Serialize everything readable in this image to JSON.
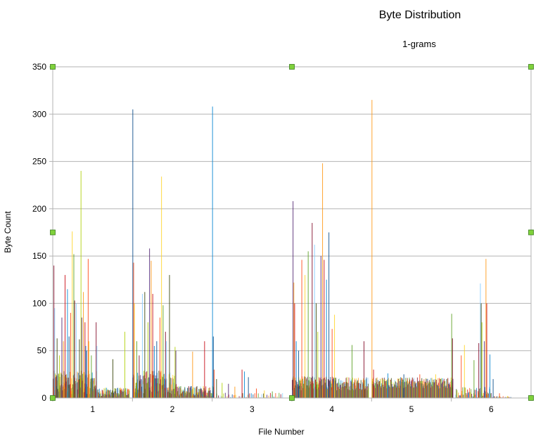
{
  "chart_data": {
    "type": "bar",
    "title": "Byte Distribution",
    "subtitle": "1-grams",
    "xlabel": "File Number",
    "ylabel": "Byte Count",
    "xlim": [
      0.5,
      6.5
    ],
    "ylim": [
      0,
      350
    ],
    "x_ticks": [
      "1",
      "2",
      "3",
      "4",
      "5",
      "6"
    ],
    "y_ticks": [
      "0",
      "50",
      "100",
      "150",
      "200",
      "250",
      "300",
      "350"
    ],
    "grid": "horizontal",
    "legend": "none",
    "selection_handles": true,
    "colors": {
      "grid": "#b3b3b3",
      "axis": "#b3b3b3",
      "handle_fill": "#7fd13b",
      "handle_stroke": "#3b7d1e",
      "palette": [
        "#004586",
        "#ff420e",
        "#ffd320",
        "#579d1c",
        "#7e0021",
        "#83caff",
        "#314004",
        "#aecf00",
        "#4b1f6f",
        "#ff950e",
        "#c5000b",
        "#0084d1"
      ]
    },
    "files": [
      {
        "file": 1,
        "bin_count": 256,
        "peaks": [
          {
            "x": 0.51,
            "y": 140
          },
          {
            "x": 0.52,
            "y": 95
          },
          {
            "x": 0.55,
            "y": 63
          },
          {
            "x": 0.58,
            "y": 45
          },
          {
            "x": 0.61,
            "y": 85
          },
          {
            "x": 0.63,
            "y": 60
          },
          {
            "x": 0.65,
            "y": 130
          },
          {
            "x": 0.68,
            "y": 115
          },
          {
            "x": 0.7,
            "y": 65
          },
          {
            "x": 0.72,
            "y": 90
          },
          {
            "x": 0.74,
            "y": 176
          },
          {
            "x": 0.76,
            "y": 152
          },
          {
            "x": 0.77,
            "y": 103
          },
          {
            "x": 0.79,
            "y": 100
          },
          {
            "x": 0.83,
            "y": 62
          },
          {
            "x": 0.85,
            "y": 240
          },
          {
            "x": 0.86,
            "y": 85
          },
          {
            "x": 0.88,
            "y": 112
          },
          {
            "x": 0.9,
            "y": 80
          },
          {
            "x": 0.91,
            "y": 55
          },
          {
            "x": 0.92,
            "y": 50
          },
          {
            "x": 0.94,
            "y": 147
          },
          {
            "x": 0.95,
            "y": 60
          },
          {
            "x": 0.98,
            "y": 45
          },
          {
            "x": 1.04,
            "y": 80
          },
          {
            "x": 1.05,
            "y": 55
          },
          {
            "x": 1.25,
            "y": 41
          },
          {
            "x": 1.4,
            "y": 70
          }
        ]
      },
      {
        "file": 2,
        "bin_count": 256,
        "peaks": [
          {
            "x": 1.5,
            "y": 305
          },
          {
            "x": 1.51,
            "y": 143
          },
          {
            "x": 1.52,
            "y": 100
          },
          {
            "x": 1.55,
            "y": 60
          },
          {
            "x": 1.58,
            "y": 45
          },
          {
            "x": 1.62,
            "y": 110
          },
          {
            "x": 1.65,
            "y": 112
          },
          {
            "x": 1.69,
            "y": 80
          },
          {
            "x": 1.71,
            "y": 158
          },
          {
            "x": 1.73,
            "y": 145
          },
          {
            "x": 1.75,
            "y": 110
          },
          {
            "x": 1.77,
            "y": 55
          },
          {
            "x": 1.8,
            "y": 60
          },
          {
            "x": 1.84,
            "y": 85
          },
          {
            "x": 1.86,
            "y": 234
          },
          {
            "x": 1.88,
            "y": 98
          },
          {
            "x": 1.91,
            "y": 70
          },
          {
            "x": 1.92,
            "y": 60
          },
          {
            "x": 1.96,
            "y": 130
          },
          {
            "x": 2.03,
            "y": 54
          },
          {
            "x": 2.04,
            "y": 50
          },
          {
            "x": 2.25,
            "y": 49
          },
          {
            "x": 2.4,
            "y": 60
          },
          {
            "x": 2.5,
            "y": 308
          },
          {
            "x": 2.51,
            "y": 65
          },
          {
            "x": 2.52,
            "y": 30
          }
        ]
      },
      {
        "file": 3,
        "bin_count": 40,
        "peaks": [
          {
            "x": 2.55,
            "y": 20
          },
          {
            "x": 2.62,
            "y": 16
          },
          {
            "x": 2.7,
            "y": 15
          },
          {
            "x": 2.78,
            "y": 12
          },
          {
            "x": 2.87,
            "y": 30
          },
          {
            "x": 2.9,
            "y": 28
          },
          {
            "x": 2.95,
            "y": 22
          },
          {
            "x": 3.05,
            "y": 10
          },
          {
            "x": 3.15,
            "y": 8
          },
          {
            "x": 3.25,
            "y": 7
          }
        ]
      },
      {
        "file": 4,
        "bin_count": 256,
        "peaks": [
          {
            "x": 3.51,
            "y": 208
          },
          {
            "x": 3.52,
            "y": 122
          },
          {
            "x": 3.53,
            "y": 100
          },
          {
            "x": 3.55,
            "y": 60
          },
          {
            "x": 3.58,
            "y": 50
          },
          {
            "x": 3.62,
            "y": 146
          },
          {
            "x": 3.66,
            "y": 130
          },
          {
            "x": 3.7,
            "y": 155
          },
          {
            "x": 3.75,
            "y": 185
          },
          {
            "x": 3.78,
            "y": 162
          },
          {
            "x": 3.8,
            "y": 100
          },
          {
            "x": 3.82,
            "y": 70
          },
          {
            "x": 3.86,
            "y": 150
          },
          {
            "x": 3.88,
            "y": 248
          },
          {
            "x": 3.9,
            "y": 146
          },
          {
            "x": 3.93,
            "y": 125
          },
          {
            "x": 3.96,
            "y": 175
          },
          {
            "x": 4.0,
            "y": 73
          },
          {
            "x": 4.03,
            "y": 88
          },
          {
            "x": 4.25,
            "y": 56
          },
          {
            "x": 4.4,
            "y": 60
          }
        ]
      },
      {
        "file": 5,
        "bin_count": 256,
        "peaks": [
          {
            "x": 4.5,
            "y": 315
          },
          {
            "x": 4.52,
            "y": 30
          },
          {
            "x": 4.7,
            "y": 26
          },
          {
            "x": 4.9,
            "y": 25
          },
          {
            "x": 5.1,
            "y": 25
          },
          {
            "x": 5.3,
            "y": 25
          },
          {
            "x": 5.5,
            "y": 89
          },
          {
            "x": 5.51,
            "y": 63
          }
        ]
      },
      {
        "file": 6,
        "bin_count": 80,
        "peaks": [
          {
            "x": 5.62,
            "y": 45
          },
          {
            "x": 5.66,
            "y": 56
          },
          {
            "x": 5.78,
            "y": 40
          },
          {
            "x": 5.84,
            "y": 58
          },
          {
            "x": 5.86,
            "y": 121
          },
          {
            "x": 5.87,
            "y": 100
          },
          {
            "x": 5.88,
            "y": 80
          },
          {
            "x": 5.91,
            "y": 60
          },
          {
            "x": 5.93,
            "y": 147
          },
          {
            "x": 5.94,
            "y": 100
          },
          {
            "x": 5.98,
            "y": 46
          },
          {
            "x": 6.02,
            "y": 20
          },
          {
            "x": 6.1,
            "y": 5
          },
          {
            "x": 6.2,
            "y": 2
          }
        ]
      }
    ]
  }
}
